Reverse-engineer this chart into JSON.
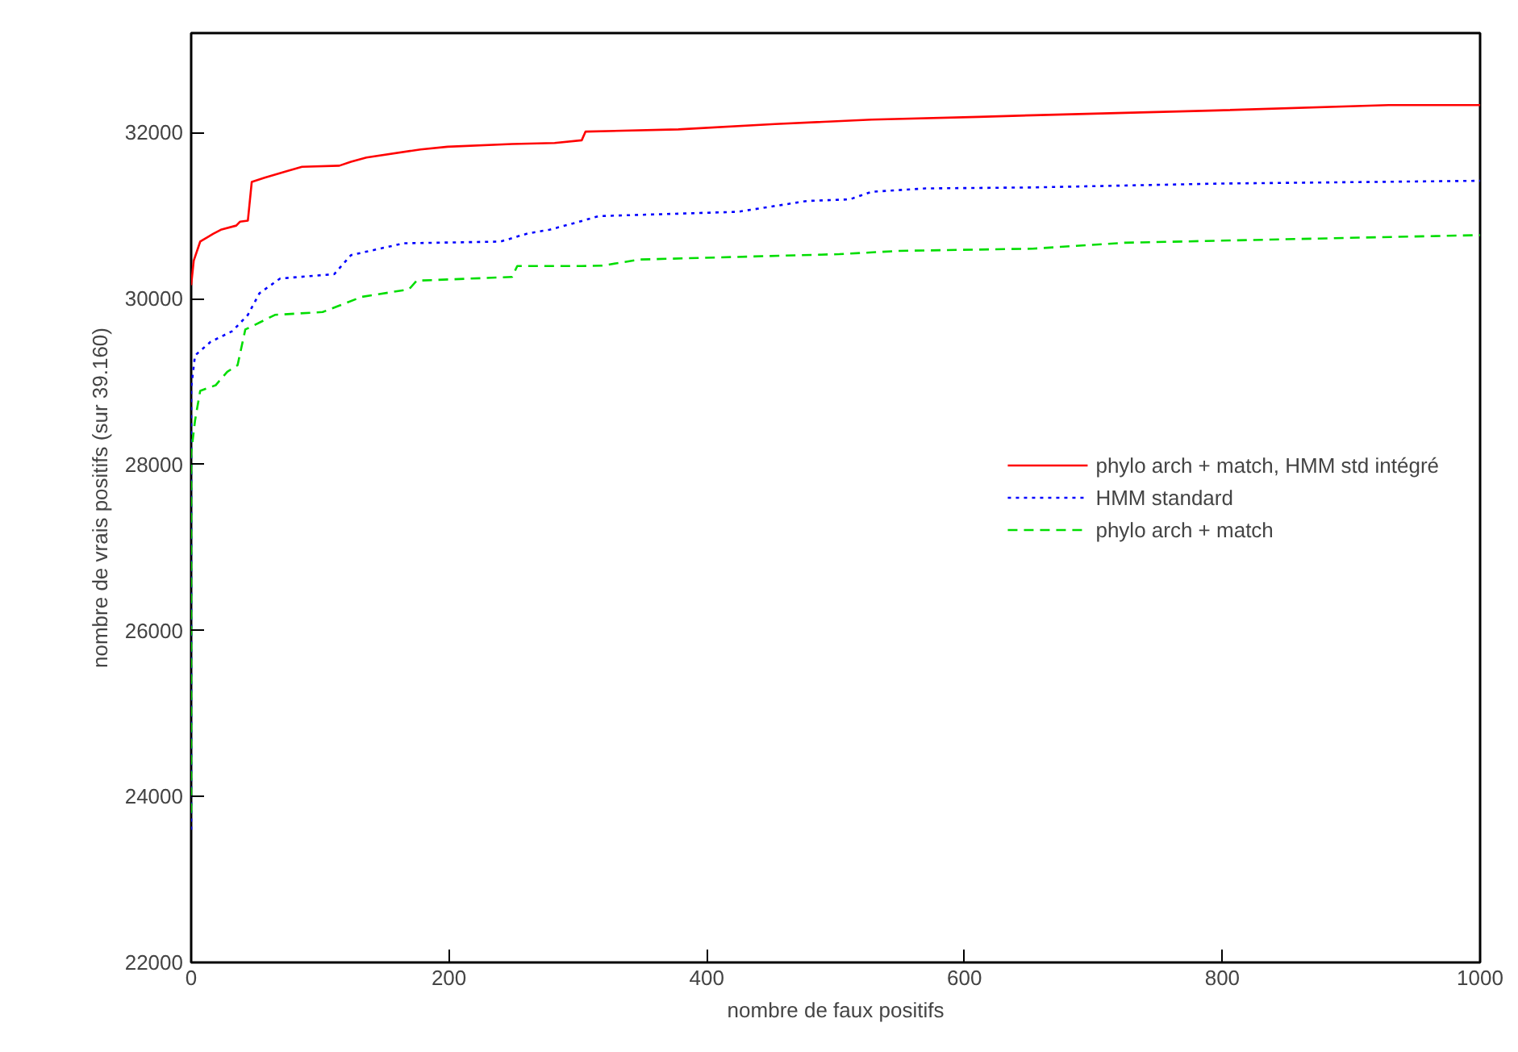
{
  "chart_data": {
    "type": "line",
    "xlabel": "nombre de faux positifs",
    "ylabel": "nombre de vrais positifs (sur 39.160)",
    "xlim": [
      0,
      1000
    ],
    "xticks": [
      0,
      200,
      400,
      600,
      800,
      1000
    ],
    "ylim": [
      22000,
      33200
    ],
    "yticks": [
      22000,
      24000,
      26000,
      28000,
      30000,
      32000
    ],
    "grid": false,
    "legend": "right",
    "series": [
      {
        "name": "phylo arch + match, HMM std intégré",
        "color": "#ff0000",
        "line_style": "solid",
        "x": [
          0,
          2,
          7,
          17,
          23,
          35,
          38,
          44,
          47,
          57,
          74,
          86,
          115,
          124,
          136,
          178,
          199,
          249,
          282,
          303,
          306,
          378,
          453,
          528,
          611,
          653,
          796,
          929,
          1000
        ],
        "values": [
          30163,
          30457,
          30687,
          30780,
          30830,
          30880,
          30928,
          30940,
          31406,
          31457,
          31535,
          31588,
          31602,
          31650,
          31700,
          31798,
          31830,
          31863,
          31876,
          31908,
          32013,
          32039,
          32104,
          32157,
          32190,
          32210,
          32268,
          32333,
          32333
        ]
      },
      {
        "name": "HMM standard",
        "color": "#0000ff",
        "line_style": "dotted",
        "x": [
          0,
          0,
          3,
          15,
          32,
          44,
          53,
          69,
          111,
          124,
          165,
          240,
          261,
          278,
          303,
          316,
          424,
          478,
          511,
          528,
          570,
          653,
          796,
          987,
          1000
        ],
        "values": [
          23600,
          28923,
          29315,
          29478,
          29609,
          29804,
          30065,
          30242,
          30295,
          30524,
          30667,
          30687,
          30785,
          30830,
          30935,
          30994,
          31046,
          31177,
          31196,
          31288,
          31328,
          31340,
          31386,
          31418,
          31420
        ]
      },
      {
        "name": "phylo arch + match",
        "color": "#00dd00",
        "line_style": "dashed",
        "x": [
          0,
          0,
          3,
          7,
          19,
          28,
          36,
          42,
          48,
          65,
          102,
          115,
          132,
          169,
          175,
          249,
          253,
          303,
          319,
          348,
          503,
          549,
          653,
          724,
          919,
          1000
        ],
        "values": [
          23800,
          28139,
          28530,
          28889,
          28956,
          29118,
          29197,
          29628,
          29673,
          29804,
          29838,
          29916,
          30020,
          30112,
          30216,
          30261,
          30393,
          30393,
          30398,
          30471,
          30536,
          30575,
          30602,
          30673,
          30739,
          30765
        ]
      }
    ]
  }
}
